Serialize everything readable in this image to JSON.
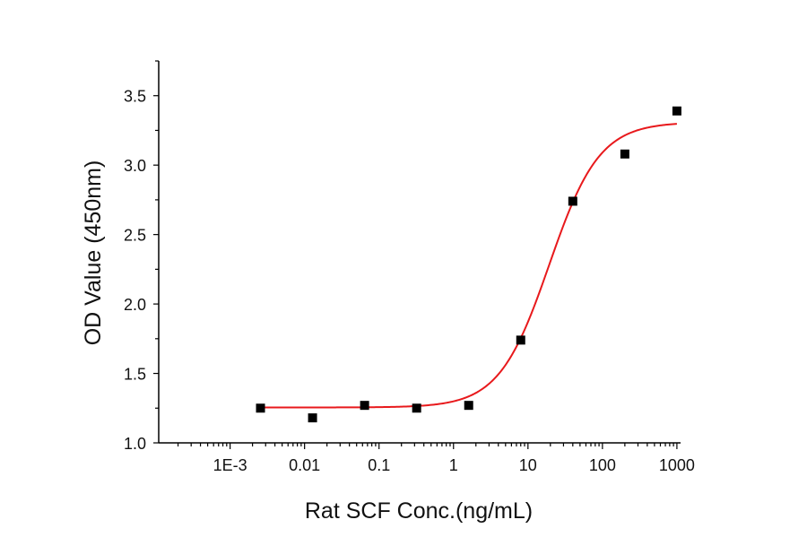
{
  "chart_data": {
    "type": "scatter",
    "title": "",
    "xlabel": "Rat SCF Conc.(ng/mL)",
    "ylabel": "OD Value (450nm)",
    "x_scale": "log",
    "xlim": [
      0.00011,
      1120
    ],
    "ylim": [
      1.0,
      3.75
    ],
    "x_ticks": [
      0.001,
      0.01,
      0.1,
      1,
      10,
      100,
      1000
    ],
    "x_tick_labels": [
      "1E-3",
      "0.01",
      "0.1",
      "1",
      "10",
      "100",
      "1000"
    ],
    "y_ticks": [
      1.0,
      1.5,
      2.0,
      2.5,
      3.0,
      3.5
    ],
    "y_tick_labels": [
      "1.0",
      "1.5",
      "2.0",
      "2.5",
      "3.0",
      "3.5"
    ],
    "grid": false,
    "legend": "none",
    "series": [
      {
        "type": "scatter",
        "marker": "square",
        "color": "#000000",
        "x": [
          0.00256,
          0.0128,
          0.064,
          0.32,
          1.6,
          8,
          40,
          200,
          1000
        ],
        "y": [
          1.25,
          1.18,
          1.27,
          1.25,
          1.27,
          1.74,
          2.74,
          3.08,
          3.39
        ]
      },
      {
        "type": "line",
        "fit": "4PL",
        "color": "#e8191c",
        "params": {
          "bottom": 1.255,
          "top": 3.31,
          "ec50": 19.3,
          "hill": 1.29
        },
        "x_range": [
          0.00256,
          1000
        ]
      }
    ]
  }
}
